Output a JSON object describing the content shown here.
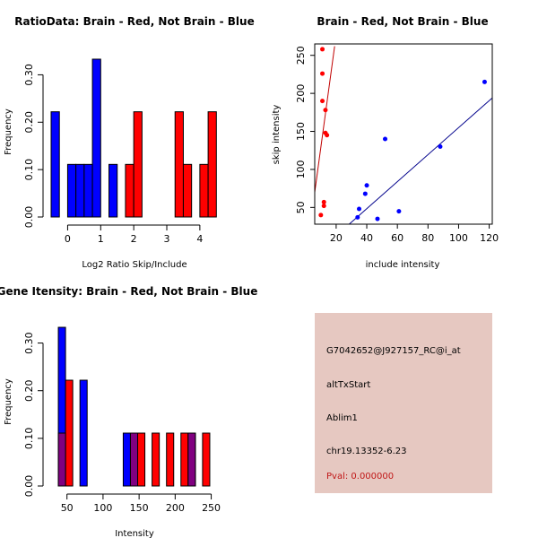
{
  "chart_data": [
    {
      "type": "bar",
      "title": "RatioData: Brain - Red, Not Brain - Blue",
      "xlabel": "Log2 Ratio Skip/Include",
      "ylabel": "Frequency",
      "xlim": [
        -0.5,
        4.6
      ],
      "ylim": [
        0,
        0.35
      ],
      "bin_width": 0.25,
      "xticks": [
        0,
        1,
        2,
        3,
        4
      ],
      "yticks": [
        0.0,
        0.1,
        0.2,
        0.3
      ],
      "ytick_labels": [
        "0.00",
        "0.10",
        "0.20",
        "0.30"
      ],
      "series": [
        {
          "name": "Not Brain",
          "color": "#0000ff",
          "bins": [
            {
              "x0": -0.5,
              "x1": -0.25,
              "value": 0.222
            },
            {
              "x0": 0.0,
              "x1": 0.25,
              "value": 0.111
            },
            {
              "x0": 0.25,
              "x1": 0.5,
              "value": 0.111
            },
            {
              "x0": 0.5,
              "x1": 0.75,
              "value": 0.111
            },
            {
              "x0": 0.75,
              "x1": 1.0,
              "value": 0.333
            },
            {
              "x0": 1.25,
              "x1": 1.5,
              "value": 0.111
            }
          ]
        },
        {
          "name": "Brain",
          "color": "#ff0000",
          "bins": [
            {
              "x0": 1.75,
              "x1": 2.0,
              "value": 0.111
            },
            {
              "x0": 2.0,
              "x1": 2.25,
              "value": 0.222
            },
            {
              "x0": 3.25,
              "x1": 3.5,
              "value": 0.222
            },
            {
              "x0": 3.5,
              "x1": 3.75,
              "value": 0.111
            },
            {
              "x0": 4.0,
              "x1": 4.25,
              "value": 0.111
            },
            {
              "x0": 4.25,
              "x1": 4.5,
              "value": 0.222
            }
          ]
        }
      ]
    },
    {
      "type": "scatter",
      "title": "Brain - Red, Not Brain - Blue",
      "xlabel": "include intensity",
      "ylabel": "skip intensity",
      "xlim": [
        6,
        122
      ],
      "ylim": [
        28,
        265
      ],
      "xticks": [
        20,
        40,
        60,
        80,
        100,
        120
      ],
      "yticks": [
        50,
        100,
        150,
        200,
        250
      ],
      "series": [
        {
          "name": "Brain",
          "color": "#ff0000",
          "points": [
            [
              10,
              40
            ],
            [
              11,
              190
            ],
            [
              11,
              258
            ],
            [
              11,
              226
            ],
            [
              12,
              57
            ],
            [
              12,
              52
            ],
            [
              13,
              148
            ],
            [
              13,
              178
            ],
            [
              14,
              145
            ]
          ],
          "fit_line": [
            [
              6,
              70
            ],
            [
              19,
              262
            ]
          ]
        },
        {
          "name": "Not Brain",
          "color": "#0000ff",
          "points": [
            [
              34,
              37
            ],
            [
              35,
              48
            ],
            [
              39,
              68
            ],
            [
              40,
              79
            ],
            [
              47,
              35
            ],
            [
              52,
              140
            ],
            [
              61,
              45
            ],
            [
              88,
              130
            ],
            [
              117,
              215
            ]
          ],
          "fit_line": [
            [
              6,
              -12
            ],
            [
              122,
              194
            ]
          ]
        }
      ]
    },
    {
      "type": "bar",
      "title": "Gene Itensity: Brain - Red, Not Brain - Blue",
      "xlabel": "Intensity",
      "ylabel": "Frequency",
      "xlim": [
        28,
        258
      ],
      "ylim": [
        0,
        0.35
      ],
      "bin_width": 10,
      "xticks": [
        50,
        100,
        150,
        200,
        250
      ],
      "yticks": [
        0.0,
        0.1,
        0.2,
        0.3
      ],
      "ytick_labels": [
        "0.00",
        "0.10",
        "0.20",
        "0.30"
      ],
      "overlap_color": "#800080",
      "series": [
        {
          "name": "Not Brain",
          "color": "#0000ff",
          "bins": [
            {
              "x0": 38,
              "x1": 48,
              "value": 0.333
            },
            {
              "x0": 68,
              "x1": 78,
              "value": 0.222
            },
            {
              "x0": 128,
              "x1": 138,
              "value": 0.111
            },
            {
              "x0": 138,
              "x1": 148,
              "value": 0.111
            },
            {
              "x0": 218,
              "x1": 228,
              "value": 0.111
            }
          ]
        },
        {
          "name": "Brain",
          "color": "#ff0000",
          "bins": [
            {
              "x0": 38,
              "x1": 48,
              "value": 0.111
            },
            {
              "x0": 48,
              "x1": 58,
              "value": 0.222
            },
            {
              "x0": 138,
              "x1": 148,
              "value": 0.111
            },
            {
              "x0": 148,
              "x1": 158,
              "value": 0.111
            },
            {
              "x0": 168,
              "x1": 178,
              "value": 0.111
            },
            {
              "x0": 188,
              "x1": 198,
              "value": 0.111
            },
            {
              "x0": 208,
              "x1": 218,
              "value": 0.111
            },
            {
              "x0": 218,
              "x1": 228,
              "value": 0.111
            },
            {
              "x0": 238,
              "x1": 248,
              "value": 0.111
            }
          ]
        }
      ]
    }
  ],
  "info_panel": {
    "probe_id": "G7042652@J927157_RC@i_at",
    "event_type": "altTxStart",
    "gene": "Ablim1",
    "location": "chr19.13352-6.23",
    "pval": "Pval: 0.000000",
    "background": "#e6c8c1",
    "pval_color": "#c01818"
  }
}
